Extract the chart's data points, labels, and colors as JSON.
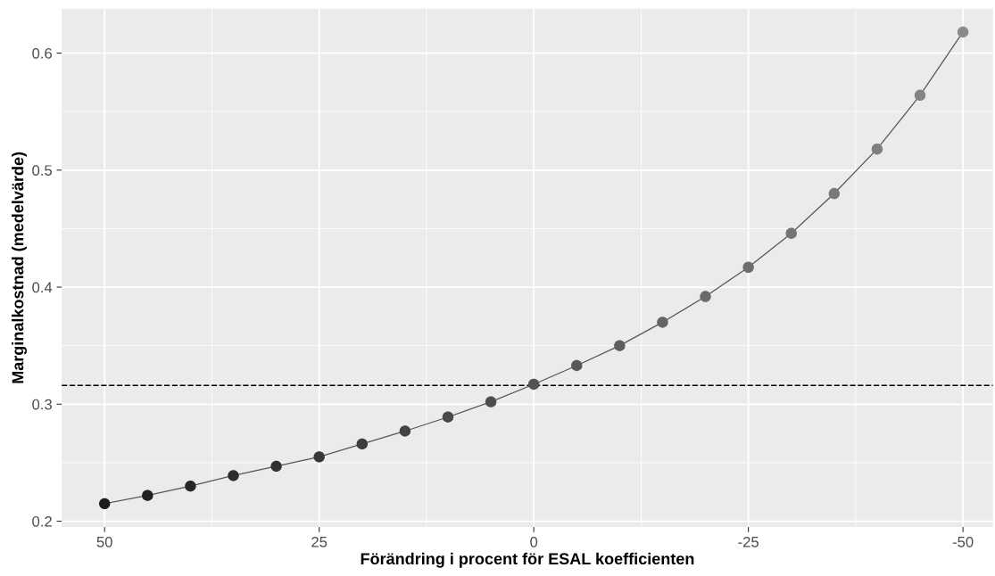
{
  "chart_data": {
    "type": "line",
    "xlabel": "Förändring i procent för ESAL koefficienten",
    "ylabel": "Marginalkostnad (medelvärde)",
    "x": [
      50,
      45,
      40,
      35,
      30,
      25,
      20,
      15,
      10,
      5,
      0,
      -5,
      -10,
      -15,
      -20,
      -25,
      -30,
      -35,
      -40,
      -45,
      -50
    ],
    "series": [
      {
        "color": "#555555",
        "values": [
          0.215,
          0.222,
          0.23,
          0.239,
          0.247,
          0.255,
          0.266,
          0.277,
          0.289,
          0.302,
          0.317,
          0.333,
          0.35,
          0.37,
          0.392,
          0.417,
          0.446,
          0.48,
          0.518,
          0.564,
          0.618
        ],
        "colors": [
          "#1c1c1c",
          "#212121",
          "#272727",
          "#2c2c2c",
          "#323232",
          "#373737",
          "#3d3d3d",
          "#424242",
          "#484848",
          "#4d4d4d",
          "#535353",
          "#585858",
          "#5e5e5e",
          "#636363",
          "#696969",
          "#6e6e6e",
          "#747474",
          "#797979",
          "#7f7f7f",
          "#848484",
          "#8a8a8a"
        ]
      }
    ],
    "marker": "circle",
    "line_style": "solid",
    "grid": true,
    "xlim": [
      55,
      -53.5
    ],
    "xticks": [
      50,
      25,
      0,
      -25,
      -50
    ],
    "ylim": [
      0.195,
      0.638
    ],
    "yticks": [
      0.2,
      0.3,
      0.4,
      0.5,
      0.6
    ],
    "ref_lines": [
      {
        "axis": "y",
        "value": 0.316,
        "line_style": "dashed",
        "color": "#000000"
      }
    ]
  }
}
